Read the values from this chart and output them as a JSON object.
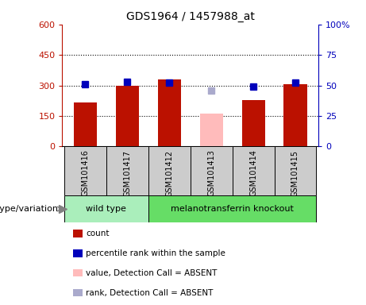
{
  "title": "GDS1964 / 1457988_at",
  "samples": [
    "GSM101416",
    "GSM101417",
    "GSM101412",
    "GSM101413",
    "GSM101414",
    "GSM101415"
  ],
  "count_values": [
    215,
    298,
    330,
    null,
    228,
    305
  ],
  "count_color": "#bb1100",
  "count_absent_values": [
    null,
    null,
    null,
    160,
    null,
    null
  ],
  "count_absent_color": "#ffbbbb",
  "rank_values": [
    51,
    53,
    52,
    null,
    49,
    52
  ],
  "rank_absent_values": [
    null,
    null,
    null,
    46,
    null,
    null
  ],
  "rank_color": "#0000bb",
  "rank_absent_color": "#aaaacc",
  "ylim_left": [
    0,
    600
  ],
  "ylim_right": [
    0,
    100
  ],
  "yticks_left": [
    0,
    150,
    300,
    450,
    600
  ],
  "ytick_labels_left": [
    "0",
    "150",
    "300",
    "450",
    "600"
  ],
  "yticks_right": [
    0,
    25,
    50,
    75,
    100
  ],
  "ytick_labels_right": [
    "0",
    "25",
    "50",
    "75",
    "100%"
  ],
  "hlines": [
    150,
    300,
    450
  ],
  "wild_type_label": "wild type",
  "knockout_label": "melanotransferrin knockout",
  "genotype_label": "genotype/variation",
  "legend_items": [
    {
      "label": "count",
      "color": "#bb1100"
    },
    {
      "label": "percentile rank within the sample",
      "color": "#0000bb"
    },
    {
      "label": "value, Detection Call = ABSENT",
      "color": "#ffbbbb"
    },
    {
      "label": "rank, Detection Call = ABSENT",
      "color": "#aaaacc"
    }
  ],
  "bar_width": 0.55,
  "marker_size": 6,
  "background_plot": "#ffffff",
  "xlabel_area_color": "#cccccc",
  "wild_type_bg": "#aaeebb",
  "knockout_bg": "#66dd66",
  "title_fontsize": 10
}
